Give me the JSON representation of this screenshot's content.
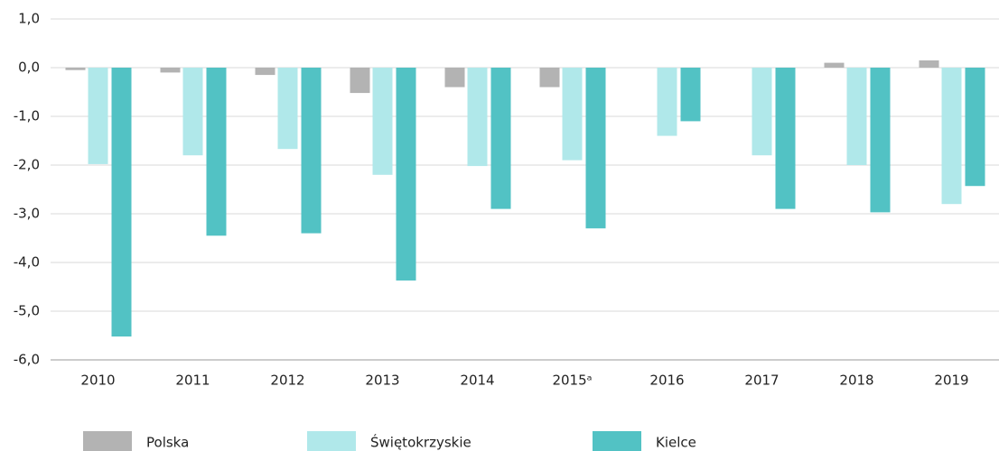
{
  "chart_data": {
    "type": "bar",
    "categories": [
      "2010",
      "2011",
      "2012",
      "2013",
      "2014",
      "2015ᵃ",
      "2016",
      "2017",
      "2018",
      "2019"
    ],
    "series": [
      {
        "name": "Polska",
        "color": "#b3b3b3",
        "values": [
          -0.05,
          -0.1,
          -0.15,
          -0.52,
          -0.4,
          -0.4,
          0,
          0,
          0.1,
          0.15
        ]
      },
      {
        "name": "Świętokrzyskie",
        "color": "#b0e8ea",
        "values": [
          -1.98,
          -1.8,
          -1.67,
          -2.2,
          -2.02,
          -1.9,
          -1.4,
          -1.8,
          -2.0,
          -2.8
        ]
      },
      {
        "name": "Kielce",
        "color": "#52c2c4",
        "values": [
          -5.52,
          -3.45,
          -3.4,
          -4.37,
          -2.9,
          -3.3,
          -1.1,
          -2.9,
          -2.97,
          -2.43
        ]
      }
    ],
    "ylim": [
      -6,
      1
    ],
    "yticks": [
      {
        "value": 1,
        "label": "1,0"
      },
      {
        "value": 0,
        "label": "0,0"
      },
      {
        "value": -1,
        "label": "-1,0"
      },
      {
        "value": -2,
        "label": "-2,0"
      },
      {
        "value": -3,
        "label": "-3,0"
      },
      {
        "value": -4,
        "label": "-4,0"
      },
      {
        "value": -5,
        "label": "-5,0"
      },
      {
        "value": -6,
        "label": "-6,0"
      }
    ],
    "grid": true
  }
}
